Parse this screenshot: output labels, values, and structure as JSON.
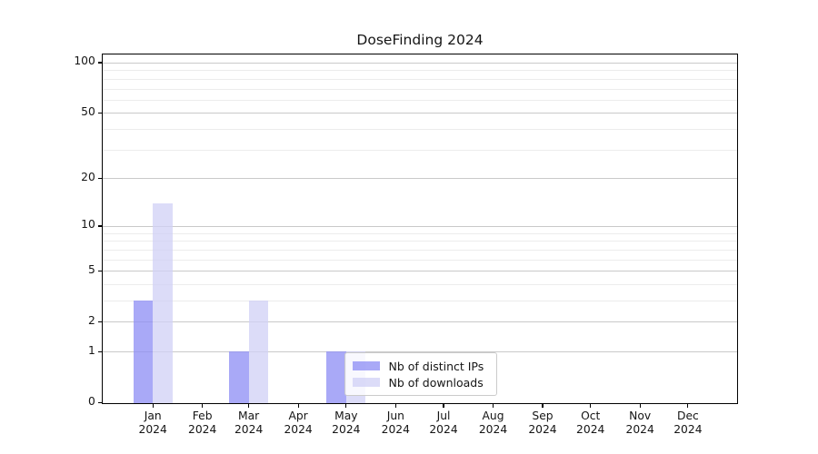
{
  "chart_data": {
    "type": "bar",
    "title": "DoseFinding 2024",
    "categories": [
      "Jan",
      "Feb",
      "Mar",
      "Apr",
      "May",
      "Jun",
      "Jul",
      "Aug",
      "Sep",
      "Oct",
      "Nov",
      "Dec"
    ],
    "category_year": "2024",
    "series": [
      {
        "name": "Nb of distinct IPs",
        "color": "#8c8cf4",
        "alpha": 0.75,
        "values": [
          3,
          0,
          1,
          0,
          1,
          0,
          0,
          0,
          0,
          0,
          0,
          0
        ]
      },
      {
        "name": "Nb of downloads",
        "color": "#d0d0f6",
        "alpha": 0.75,
        "values": [
          14,
          0,
          3,
          0,
          1,
          0,
          0,
          0,
          0,
          0,
          0,
          0
        ]
      }
    ],
    "y_scale": "log10(1+y)",
    "y_major_ticks": [
      0,
      1,
      2,
      5,
      10,
      20,
      50,
      100
    ],
    "y_minor_gridlines": [
      3,
      4,
      6,
      7,
      8,
      9,
      30,
      40,
      60,
      70,
      80,
      90
    ],
    "ylim": [
      0,
      112
    ],
    "xlabel": "",
    "ylabel": "",
    "grid": true,
    "legend_position": "lower center"
  },
  "colors": {
    "background": "#ffffff",
    "spine": "#000000",
    "grid_major": "#c9c9c9",
    "grid_minor": "#ececec",
    "legend_border": "#cbcbcb",
    "text": "#151515"
  }
}
